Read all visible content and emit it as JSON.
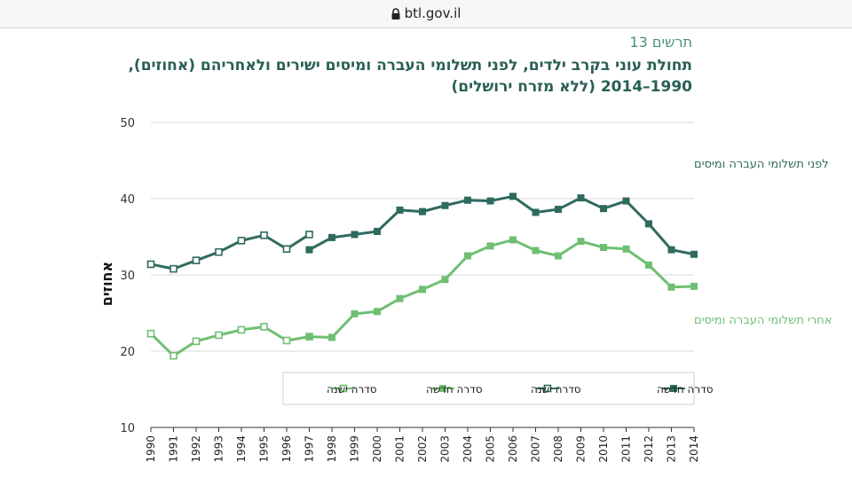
{
  "browser": {
    "url": "btl.gov.il"
  },
  "figure": {
    "label": "תרשים 13",
    "title": "תחולת עוני בקרב ילדים, לפני תשלומי העברה ומיסים ישירים ולאחריהם (אחוזים), 1990–2014 (ללא מזרח ירושלים)"
  },
  "colors": {
    "dark": "#2e6b5e",
    "light": "#6fbf73",
    "grid": "#d9d9d9"
  },
  "chart_data": {
    "type": "line",
    "ylabel": "אחוזים",
    "ylim": [
      10,
      50
    ],
    "yticks": [
      10,
      20,
      30,
      40,
      50
    ],
    "x": [
      "1990",
      "1991",
      "1992",
      "1993",
      "1994",
      "1995",
      "1996",
      "1997",
      "1998",
      "1999",
      "2000",
      "2001",
      "2002",
      "2003",
      "2004",
      "2005",
      "2006",
      "2007",
      "2008",
      "2009",
      "2010",
      "2011",
      "2012",
      "2013",
      "2014"
    ],
    "grid": "horizontal",
    "legend_placement": "bottom-right",
    "annotations": [
      {
        "text": "לפני תשלומי העברה ומיסים",
        "color": "dark"
      },
      {
        "text": "אחרי תשלומי העברה ומיסים",
        "color": "light"
      }
    ],
    "series": [
      {
        "name": "סדרה ישנה",
        "group": "before",
        "color": "dark",
        "marker": "hollow-square",
        "values": [
          31.4,
          30.8,
          31.9,
          33.0,
          34.5,
          35.2,
          33.4,
          35.3,
          null,
          null,
          null,
          null,
          null,
          null,
          null,
          null,
          null,
          null,
          null,
          null,
          null,
          null,
          null,
          null,
          null
        ]
      },
      {
        "name": "סדרה חדשה",
        "group": "before",
        "color": "dark",
        "marker": "filled-square",
        "values": [
          null,
          null,
          null,
          null,
          null,
          null,
          null,
          33.3,
          34.9,
          35.3,
          35.7,
          38.5,
          38.3,
          39.1,
          39.8,
          39.7,
          40.3,
          38.2,
          38.6,
          40.1,
          38.7,
          39.7,
          36.7,
          33.3,
          32.7
        ]
      },
      {
        "name": "סדרה ישנה",
        "group": "after",
        "color": "light",
        "marker": "hollow-square",
        "values": [
          22.3,
          19.4,
          21.3,
          22.1,
          22.8,
          23.2,
          21.4,
          21.9,
          null,
          null,
          null,
          null,
          null,
          null,
          null,
          null,
          null,
          null,
          null,
          null,
          null,
          null,
          null,
          null,
          null
        ]
      },
      {
        "name": "סדרה חדשה",
        "group": "after",
        "color": "light",
        "marker": "filled-square",
        "values": [
          null,
          null,
          null,
          null,
          null,
          null,
          null,
          21.9,
          21.8,
          24.9,
          25.2,
          26.9,
          28.1,
          29.4,
          32.5,
          33.8,
          34.6,
          33.2,
          32.5,
          34.4,
          33.6,
          33.4,
          31.3,
          28.4,
          28.5
        ]
      }
    ],
    "legend_order": [
      {
        "name": "סדרה חדשה",
        "color": "dark",
        "marker": "filled-square"
      },
      {
        "name": "סדרה ישנה",
        "color": "dark",
        "marker": "hollow-square"
      },
      {
        "name": "סדרה חדשה",
        "color": "light",
        "marker": "filled-square"
      },
      {
        "name": "סדרה ישנה",
        "color": "light",
        "marker": "hollow-square"
      }
    ]
  }
}
